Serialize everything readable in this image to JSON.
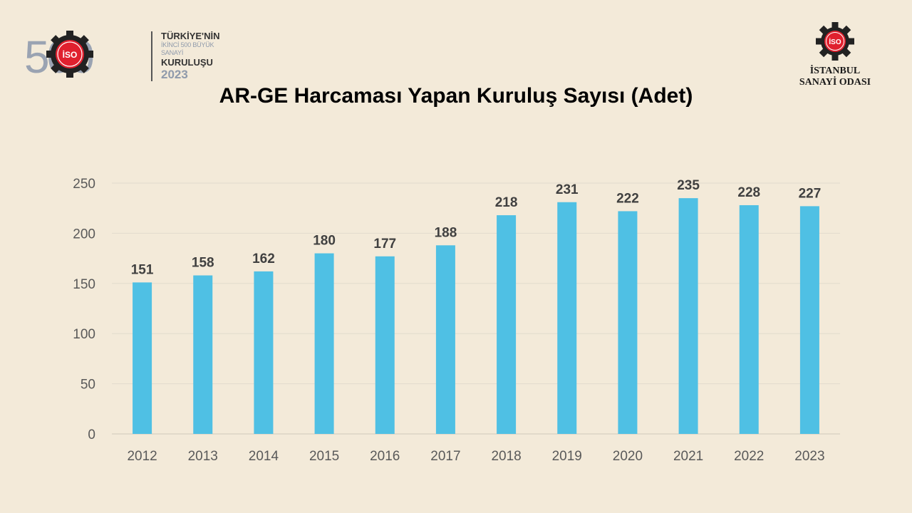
{
  "badge": {
    "number_mark": "500",
    "line1": "TÜRKİYE'NİN",
    "line2": "İKİNCİ 500 BÜYÜK SANAYİ",
    "line3": "KURULUŞU",
    "line4": "2023",
    "emblem_text": "İSO"
  },
  "org": {
    "line1": "İSTANBUL",
    "line2": "SANAYİ ODASI",
    "emblem_text": "İSO"
  },
  "colors": {
    "bar": "#4fc0e4",
    "background": "#f3ead9",
    "accent_red": "#e0202e",
    "gear": "#222222"
  },
  "chart_data": {
    "type": "bar",
    "title": "AR-GE Harcaması Yapan Kuruluş Sayısı (Adet)",
    "categories": [
      "2012",
      "2013",
      "2014",
      "2015",
      "2016",
      "2017",
      "2018",
      "2019",
      "2020",
      "2021",
      "2022",
      "2023"
    ],
    "values": [
      151,
      158,
      162,
      180,
      177,
      188,
      218,
      231,
      222,
      235,
      228,
      227
    ],
    "ylim": [
      0,
      250
    ],
    "yticks": [
      0,
      50,
      100,
      150,
      200,
      250
    ],
    "grid": true,
    "data_labels": true,
    "xlabel": "",
    "ylabel": ""
  }
}
